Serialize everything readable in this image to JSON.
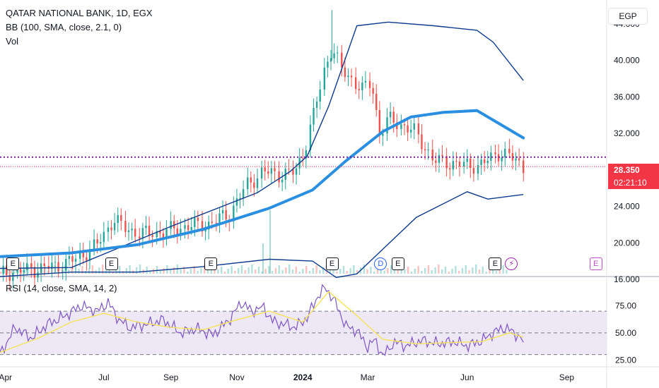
{
  "legend": {
    "title": "QATAR NATIONAL BANK, 1D, EGX",
    "bb": "BB (100, SMA, close, 2.1, 0)",
    "vol": "Vol",
    "rsi": "RSI (14, close, SMA, 14, 2)"
  },
  "currency": "EGP",
  "price_tag": {
    "last": "28.350",
    "countdown": "02:21:10"
  },
  "colors": {
    "up": "#26a69a",
    "down": "#ef5350",
    "bb_band": "#0d3a8c",
    "bb_basis": "#2a8fe0",
    "rsi": "#7e57c2",
    "rsi_ma": "#f5e35a",
    "rsi_fill": "#ede7f6",
    "price_line": "#7b1fa2",
    "last": "#f23645"
  },
  "events": [
    {
      "symbol": "E",
      "date": "2023-04-08",
      "kind": "earnings"
    },
    {
      "symbol": "E",
      "date": "2023-07-08",
      "kind": "earnings"
    },
    {
      "symbol": "E",
      "date": "2023-10-08",
      "kind": "earnings"
    },
    {
      "symbol": "E",
      "date": "2024-01-28",
      "kind": "earnings"
    },
    {
      "symbol": "D",
      "date": "2024-03-13",
      "kind": "dividend"
    },
    {
      "symbol": "E",
      "date": "2024-03-29",
      "kind": "earnings"
    },
    {
      "symbol": "E",
      "date": "2024-06-27",
      "kind": "earnings"
    },
    {
      "symbol": "⚡",
      "date": "2024-07-12",
      "kind": "split"
    },
    {
      "symbol": "E",
      "date": "2024-09-28",
      "kind": "future-earnings"
    }
  ],
  "chart_data": [
    {
      "type": "line",
      "panel": "price",
      "y_axis_ticks": [
        "44.000",
        "40.000",
        "36.000",
        "32.000",
        "24.000",
        "20.000",
        "16.000"
      ],
      "ylim": [
        16,
        46
      ],
      "x_ticks": [
        "Apr",
        "Jul",
        "Sep",
        "Nov",
        "2024",
        "Mar",
        "Jun",
        "Sep"
      ],
      "x_range": [
        "2023-03-27",
        "2024-10-08"
      ],
      "price_line": 29.4,
      "last_price": 28.35,
      "series": [
        {
          "role": "close",
          "x": [
            "2023-03-27",
            "2023-04-20",
            "2023-05-15",
            "2023-06-05",
            "2023-06-25",
            "2023-07-10",
            "2023-07-20",
            "2023-08-05",
            "2023-08-25",
            "2023-09-15",
            "2023-10-05",
            "2023-10-25",
            "2023-11-10",
            "2023-11-25",
            "2023-12-10",
            "2023-12-25",
            "2024-01-01",
            "2024-01-10",
            "2024-01-20",
            "2024-01-28",
            "2024-02-05",
            "2024-02-15",
            "2024-02-25",
            "2024-03-05",
            "2024-03-12",
            "2024-03-20",
            "2024-04-01",
            "2024-04-15",
            "2024-05-01",
            "2024-05-15",
            "2024-06-01",
            "2024-06-15",
            "2024-06-30",
            "2024-07-10",
            "2024-07-23"
          ],
          "y": [
            16.6,
            17.0,
            17.4,
            18.2,
            19.8,
            22.6,
            21.6,
            21.0,
            21.2,
            21.8,
            22.0,
            23.2,
            26.3,
            27.8,
            27.5,
            27.7,
            29.8,
            33.5,
            38.5,
            41.5,
            39.0,
            38.0,
            36.8,
            37.5,
            32.0,
            33.5,
            33.0,
            32.0,
            29.0,
            28.8,
            28.5,
            28.6,
            29.9,
            29.5,
            28.35
          ]
        },
        {
          "role": "bb-upper",
          "x": [
            "2023-03-27",
            "2023-06-01",
            "2023-09-01",
            "2023-11-20",
            "2023-12-20",
            "2024-01-05",
            "2024-01-25",
            "2024-02-20",
            "2024-03-20",
            "2024-05-01",
            "2024-06-10",
            "2024-06-25",
            "2024-07-23"
          ],
          "y": [
            17.2,
            17.3,
            21.8,
            25.5,
            27.8,
            29.5,
            35.0,
            43.8,
            44.2,
            43.8,
            43.3,
            42.0,
            37.8
          ]
        },
        {
          "role": "bb-basis",
          "x": [
            "2023-03-27",
            "2023-06-01",
            "2023-08-01",
            "2023-10-01",
            "2023-12-01",
            "2024-01-10",
            "2024-02-10",
            "2024-03-15",
            "2024-04-10",
            "2024-05-10",
            "2024-06-10",
            "2024-07-23"
          ],
          "y": [
            18.5,
            18.9,
            19.8,
            21.5,
            23.8,
            25.8,
            29.0,
            32.2,
            33.8,
            34.3,
            34.5,
            31.5
          ]
        },
        {
          "role": "bb-lower",
          "x": [
            "2023-03-27",
            "2023-06-01",
            "2023-08-01",
            "2023-10-01",
            "2023-12-01",
            "2024-01-10",
            "2024-02-01",
            "2024-02-20",
            "2024-03-15",
            "2024-04-15",
            "2024-06-01",
            "2024-06-20",
            "2024-07-23"
          ],
          "y": [
            16.3,
            16.8,
            16.8,
            17.4,
            18.2,
            18.0,
            16.2,
            16.6,
            19.3,
            22.8,
            25.6,
            24.8,
            25.3
          ]
        }
      ]
    },
    {
      "type": "line",
      "panel": "rsi",
      "y_axis_ticks": [
        "75.00",
        "50.00",
        "25.00"
      ],
      "ylim": [
        20,
        100
      ],
      "levels": [
        70,
        50,
        30
      ],
      "series": [
        {
          "role": "rsi",
          "x": [
            "2023-03-27",
            "2023-04-10",
            "2023-04-25",
            "2023-05-10",
            "2023-05-25",
            "2023-06-10",
            "2023-06-25",
            "2023-07-05",
            "2023-07-15",
            "2023-07-25",
            "2023-08-10",
            "2023-08-25",
            "2023-09-10",
            "2023-09-25",
            "2023-10-10",
            "2023-10-25",
            "2023-11-05",
            "2023-11-15",
            "2023-11-25",
            "2023-12-05",
            "2023-12-15",
            "2023-12-25",
            "2024-01-05",
            "2024-01-15",
            "2024-01-22",
            "2024-01-30",
            "2024-02-10",
            "2024-02-20",
            "2024-03-01",
            "2024-03-08",
            "2024-03-15",
            "2024-03-25",
            "2024-04-05",
            "2024-04-20",
            "2024-05-05",
            "2024-05-20",
            "2024-06-01",
            "2024-06-15",
            "2024-06-25",
            "2024-07-05",
            "2024-07-15",
            "2024-07-23"
          ],
          "y": [
            30,
            55,
            45,
            58,
            65,
            75,
            70,
            78,
            62,
            55,
            58,
            62,
            50,
            54,
            48,
            62,
            78,
            70,
            74,
            60,
            58,
            55,
            64,
            84,
            92,
            80,
            56,
            52,
            37,
            44,
            28,
            42,
            38,
            43,
            40,
            42,
            38,
            43,
            50,
            55,
            50,
            42
          ]
        },
        {
          "role": "rsi-ma",
          "x": [
            "2023-03-27",
            "2023-05-01",
            "2023-06-01",
            "2023-07-01",
            "2023-08-01",
            "2023-09-01",
            "2023-10-01",
            "2023-11-01",
            "2023-12-01",
            "2024-01-01",
            "2024-01-25",
            "2024-02-20",
            "2024-03-15",
            "2024-04-15",
            "2024-05-15",
            "2024-06-15",
            "2024-07-10",
            "2024-07-23"
          ],
          "y": [
            32,
            45,
            60,
            68,
            60,
            55,
            53,
            62,
            70,
            60,
            88,
            66,
            44,
            40,
            41,
            42,
            50,
            46
          ]
        }
      ]
    }
  ]
}
